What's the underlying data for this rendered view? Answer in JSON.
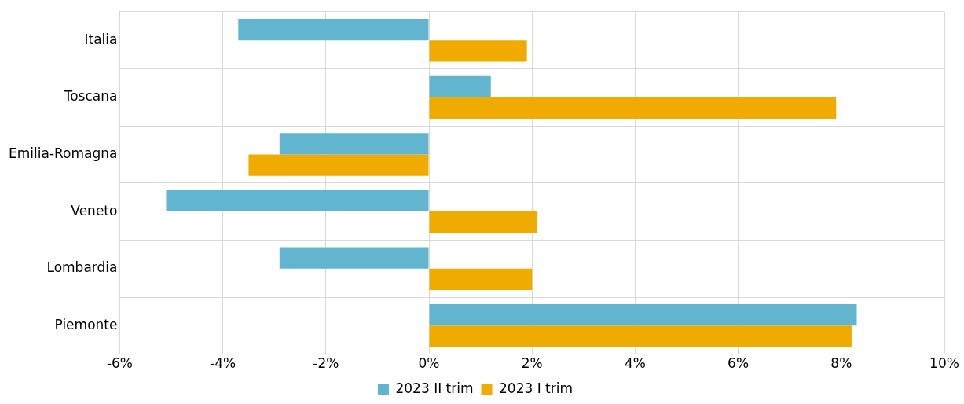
{
  "chart_data": {
    "type": "bar",
    "orientation": "horizontal",
    "categories": [
      "Italia",
      "Toscana",
      "Emilia-Romagna",
      "Veneto",
      "Lombardia",
      "Piemonte"
    ],
    "series": [
      {
        "name": "2023 II trim",
        "color": "#62b5cf",
        "values": [
          -3.7,
          1.2,
          -2.9,
          -5.1,
          -2.9,
          8.3
        ]
      },
      {
        "name": "2023 I trim",
        "color": "#f0ab00",
        "values": [
          1.9,
          7.9,
          -3.5,
          2.1,
          2.0,
          8.2
        ]
      }
    ],
    "xlim": [
      -6,
      10
    ],
    "xticks": [
      {
        "value": -6,
        "label": "-6%"
      },
      {
        "value": -4,
        "label": "-4%"
      },
      {
        "value": -2,
        "label": "-2%"
      },
      {
        "value": 0,
        "label": "0%"
      },
      {
        "value": 2,
        "label": "2%"
      },
      {
        "value": 4,
        "label": "4%"
      },
      {
        "value": 6,
        "label": "6%"
      },
      {
        "value": 8,
        "label": "8%"
      },
      {
        "value": 10,
        "label": "10%"
      }
    ],
    "grid": true,
    "legend": "bottom"
  }
}
